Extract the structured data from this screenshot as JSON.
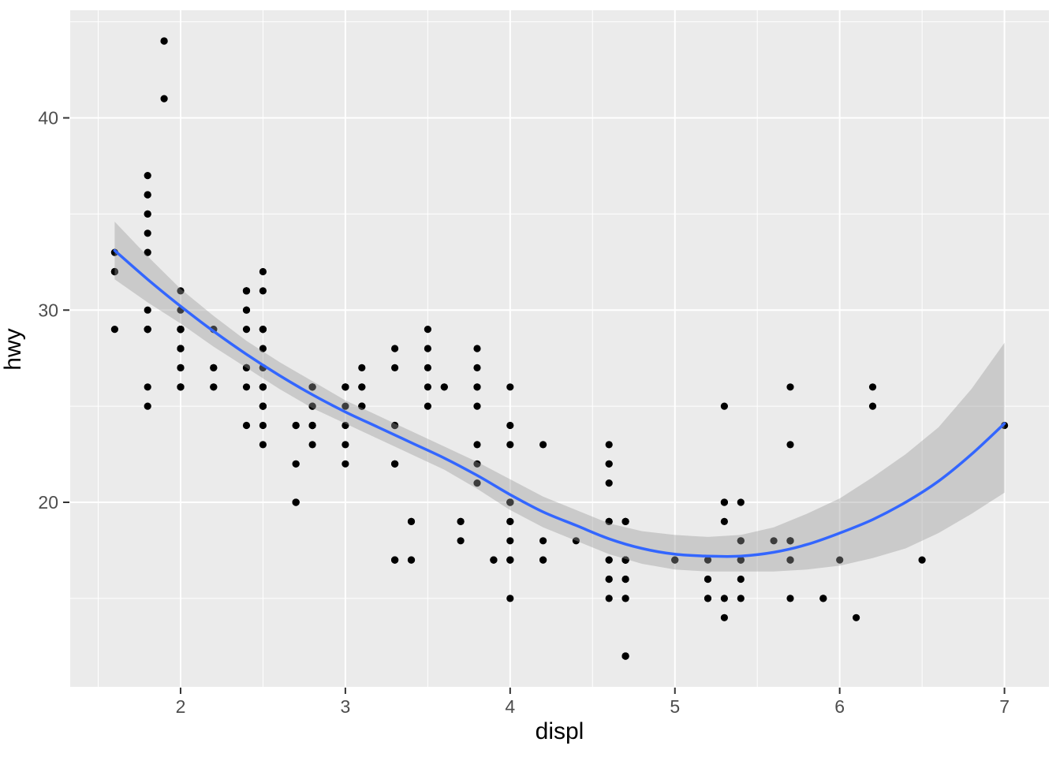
{
  "chart_data": {
    "type": "scatter",
    "title": "",
    "xlabel": "displ",
    "ylabel": "hwy",
    "legend": "none",
    "grid": "on",
    "x_domain": [
      1.33,
      7.27
    ],
    "y_domain": [
      10.4,
      45.6
    ],
    "x_major_ticks": [
      2,
      3,
      4,
      5,
      6,
      7
    ],
    "x_minor_ticks": [
      1.5,
      2.5,
      3.5,
      4.5,
      5.5,
      6.5
    ],
    "y_major_ticks": [
      20,
      30,
      40
    ],
    "y_minor_ticks": [
      15,
      25,
      35,
      45
    ],
    "x_tick_labels": [
      "2",
      "3",
      "4",
      "5",
      "6",
      "7"
    ],
    "y_tick_labels": [
      "20",
      "30",
      "40"
    ],
    "points": [
      [
        1.8,
        29
      ],
      [
        1.8,
        29
      ],
      [
        2,
        31
      ],
      [
        2,
        30
      ],
      [
        2.8,
        26
      ],
      [
        2.8,
        26
      ],
      [
        3.1,
        27
      ],
      [
        1.8,
        26
      ],
      [
        1.8,
        25
      ],
      [
        2,
        28
      ],
      [
        2,
        27
      ],
      [
        2.8,
        25
      ],
      [
        2.8,
        25
      ],
      [
        3.1,
        25
      ],
      [
        3.1,
        25
      ],
      [
        2.8,
        24
      ],
      [
        3.1,
        25
      ],
      [
        4.2,
        23
      ],
      [
        5.3,
        20
      ],
      [
        5.3,
        15
      ],
      [
        5.3,
        20
      ],
      [
        5.7,
        17
      ],
      [
        6,
        17
      ],
      [
        5.7,
        26
      ],
      [
        5.7,
        23
      ],
      [
        6.2,
        26
      ],
      [
        6.2,
        25
      ],
      [
        7,
        24
      ],
      [
        5.3,
        19
      ],
      [
        5.3,
        14
      ],
      [
        5.7,
        15
      ],
      [
        6.5,
        17
      ],
      [
        2.4,
        27
      ],
      [
        2.4,
        30
      ],
      [
        3.1,
        26
      ],
      [
        3.5,
        29
      ],
      [
        3.6,
        26
      ],
      [
        2.4,
        24
      ],
      [
        3,
        24
      ],
      [
        3.3,
        22
      ],
      [
        3.3,
        22
      ],
      [
        3.3,
        24
      ],
      [
        3.3,
        24
      ],
      [
        3.3,
        17
      ],
      [
        3.8,
        22
      ],
      [
        3.8,
        21
      ],
      [
        3.8,
        23
      ],
      [
        4,
        23
      ],
      [
        3.7,
        19
      ],
      [
        3.7,
        18
      ],
      [
        3.9,
        17
      ],
      [
        3.9,
        17
      ],
      [
        4.7,
        19
      ],
      [
        4.7,
        19
      ],
      [
        4.7,
        12
      ],
      [
        5.2,
        17
      ],
      [
        5.2,
        15
      ],
      [
        3.9,
        17
      ],
      [
        4.7,
        17
      ],
      [
        4.7,
        17
      ],
      [
        4.7,
        16
      ],
      [
        5.2,
        16
      ],
      [
        5.7,
        18
      ],
      [
        5.9,
        15
      ],
      [
        4.7,
        17
      ],
      [
        4.7,
        17
      ],
      [
        4.7,
        12
      ],
      [
        4.7,
        17
      ],
      [
        4.7,
        16
      ],
      [
        4.7,
        12
      ],
      [
        5.2,
        15
      ],
      [
        5.2,
        16
      ],
      [
        5.7,
        17
      ],
      [
        5.9,
        15
      ],
      [
        4.6,
        17
      ],
      [
        5.4,
        17
      ],
      [
        5.4,
        18
      ],
      [
        4,
        17
      ],
      [
        4,
        17
      ],
      [
        4,
        19
      ],
      [
        4.6,
        19
      ],
      [
        5,
        17
      ],
      [
        4.2,
        17
      ],
      [
        4.2,
        17
      ],
      [
        4.6,
        16
      ],
      [
        4.6,
        16
      ],
      [
        4.6,
        17
      ],
      [
        5.4,
        15
      ],
      [
        5.4,
        17
      ],
      [
        3.8,
        26
      ],
      [
        3.8,
        25
      ],
      [
        4,
        26
      ],
      [
        4,
        24
      ],
      [
        4.6,
        21
      ],
      [
        4.6,
        22
      ],
      [
        4.6,
        23
      ],
      [
        4.6,
        22
      ],
      [
        5.4,
        20
      ],
      [
        1.6,
        33
      ],
      [
        1.6,
        32
      ],
      [
        1.6,
        32
      ],
      [
        1.6,
        29
      ],
      [
        1.6,
        32
      ],
      [
        1.8,
        34
      ],
      [
        1.8,
        36
      ],
      [
        1.8,
        36
      ],
      [
        2,
        29
      ],
      [
        2.4,
        26
      ],
      [
        2.4,
        27
      ],
      [
        2.4,
        30
      ],
      [
        2.4,
        31
      ],
      [
        2.5,
        26
      ],
      [
        2.5,
        26
      ],
      [
        3.3,
        28
      ],
      [
        2,
        26
      ],
      [
        2,
        29
      ],
      [
        2,
        28
      ],
      [
        2,
        27
      ],
      [
        2.7,
        24
      ],
      [
        2.7,
        24
      ],
      [
        3,
        22
      ],
      [
        3.7,
        19
      ],
      [
        4,
        20
      ],
      [
        4.7,
        17
      ],
      [
        4.7,
        12
      ],
      [
        4.7,
        19
      ],
      [
        5.7,
        18
      ],
      [
        6.1,
        14
      ],
      [
        4,
        15
      ],
      [
        4.2,
        18
      ],
      [
        4.4,
        18
      ],
      [
        4.6,
        15
      ],
      [
        5.4,
        17
      ],
      [
        5.4,
        16
      ],
      [
        5.4,
        18
      ],
      [
        4,
        17
      ],
      [
        4,
        19
      ],
      [
        4.6,
        19
      ],
      [
        5,
        17
      ],
      [
        2.4,
        29
      ],
      [
        2.4,
        27
      ],
      [
        2.5,
        31
      ],
      [
        2.5,
        32
      ],
      [
        3.5,
        27
      ],
      [
        3.5,
        26
      ],
      [
        3,
        26
      ],
      [
        3,
        25
      ],
      [
        3.5,
        25
      ],
      [
        3.3,
        17
      ],
      [
        3.3,
        17
      ],
      [
        4,
        20
      ],
      [
        5.6,
        18
      ],
      [
        3.1,
        26
      ],
      [
        3.8,
        26
      ],
      [
        3.8,
        27
      ],
      [
        3.8,
        28
      ],
      [
        5.3,
        25
      ],
      [
        2.5,
        25
      ],
      [
        2.5,
        24
      ],
      [
        2.5,
        27
      ],
      [
        2.5,
        25
      ],
      [
        2.5,
        23
      ],
      [
        2.2,
        26
      ],
      [
        2.2,
        26
      ],
      [
        2.5,
        26
      ],
      [
        2.5,
        26
      ],
      [
        2.5,
        25
      ],
      [
        2.5,
        27
      ],
      [
        2.5,
        25
      ],
      [
        2.5,
        27
      ],
      [
        2.7,
        20
      ],
      [
        2.7,
        20
      ],
      [
        3.4,
        19
      ],
      [
        3.4,
        17
      ],
      [
        4,
        20
      ],
      [
        4.7,
        17
      ],
      [
        2.2,
        29
      ],
      [
        2.2,
        27
      ],
      [
        2.4,
        31
      ],
      [
        2.4,
        31
      ],
      [
        3,
        26
      ],
      [
        3,
        26
      ],
      [
        3.5,
        28
      ],
      [
        2.2,
        27
      ],
      [
        2.2,
        29
      ],
      [
        2.4,
        31
      ],
      [
        2.4,
        31
      ],
      [
        3,
        26
      ],
      [
        3.3,
        27
      ],
      [
        1.8,
        30
      ],
      [
        1.8,
        33
      ],
      [
        1.8,
        35
      ],
      [
        1.8,
        37
      ],
      [
        1.8,
        35
      ],
      [
        4.7,
        15
      ],
      [
        5.7,
        18
      ],
      [
        3,
        23
      ],
      [
        3.3,
        22
      ],
      [
        2.7,
        22
      ],
      [
        2.7,
        20
      ],
      [
        2.7,
        22
      ],
      [
        3.4,
        17
      ],
      [
        3.4,
        19
      ],
      [
        4,
        18
      ],
      [
        4,
        20
      ],
      [
        4.7,
        15
      ],
      [
        4.7,
        17
      ],
      [
        4.7,
        17
      ],
      [
        5.7,
        18
      ],
      [
        2,
        29
      ],
      [
        2,
        26
      ],
      [
        2,
        29
      ],
      [
        2,
        29
      ],
      [
        2.8,
        24
      ],
      [
        1.9,
        44
      ],
      [
        2,
        29
      ],
      [
        2,
        26
      ],
      [
        2,
        29
      ],
      [
        2,
        29
      ],
      [
        2.5,
        29
      ],
      [
        2.5,
        29
      ],
      [
        2.8,
        23
      ],
      [
        2.8,
        24
      ],
      [
        1.9,
        44
      ],
      [
        1.9,
        41
      ],
      [
        2,
        29
      ],
      [
        2,
        26
      ],
      [
        2.5,
        28
      ],
      [
        2.5,
        29
      ],
      [
        1.8,
        29
      ],
      [
        1.8,
        29
      ],
      [
        2,
        28
      ],
      [
        2,
        29
      ],
      [
        2.8,
        26
      ],
      [
        2.8,
        26
      ],
      [
        3.6,
        26
      ]
    ],
    "smooth": {
      "method": "loess",
      "x": [
        1.6,
        1.8,
        2.0,
        2.2,
        2.4,
        2.6,
        2.8,
        3.0,
        3.2,
        3.4,
        3.6,
        3.8,
        4.0,
        4.2,
        4.4,
        4.6,
        4.8,
        5.0,
        5.2,
        5.4,
        5.6,
        5.8,
        6.0,
        6.2,
        6.4,
        6.6,
        6.8,
        7.0
      ],
      "y": [
        33.1,
        31.6,
        30.2,
        28.9,
        27.7,
        26.6,
        25.6,
        24.7,
        23.9,
        23.1,
        22.3,
        21.4,
        20.4,
        19.5,
        18.8,
        18.1,
        17.6,
        17.3,
        17.2,
        17.2,
        17.4,
        17.8,
        18.4,
        19.1,
        20.0,
        21.1,
        22.5,
        24.1
      ],
      "upper": [
        34.6,
        32.8,
        31.1,
        29.7,
        28.4,
        27.3,
        26.3,
        25.3,
        24.5,
        23.7,
        22.9,
        22.1,
        21.2,
        20.3,
        19.6,
        18.9,
        18.5,
        18.3,
        18.2,
        18.3,
        18.7,
        19.4,
        20.2,
        21.3,
        22.5,
        23.9,
        25.9,
        28.3
      ],
      "lower": [
        31.6,
        30.4,
        29.3,
        28.1,
        27.0,
        25.9,
        24.9,
        24.1,
        23.3,
        22.5,
        21.7,
        20.7,
        19.6,
        18.7,
        18.0,
        17.3,
        16.8,
        16.5,
        16.4,
        16.4,
        16.4,
        16.5,
        16.7,
        17.1,
        17.6,
        18.4,
        19.4,
        20.5
      ]
    },
    "colors": {
      "background": "#FFFFFF",
      "panel": "#EBEBEB",
      "grid": "#FFFFFF",
      "point": "#000000",
      "smooth_line": "#3366FF",
      "ribbon_fill": "#999999",
      "ribbon_opacity": 0.4,
      "tick_label": "#4D4D4D",
      "tick_mark": "#333333",
      "axis_title": "#000000"
    }
  }
}
